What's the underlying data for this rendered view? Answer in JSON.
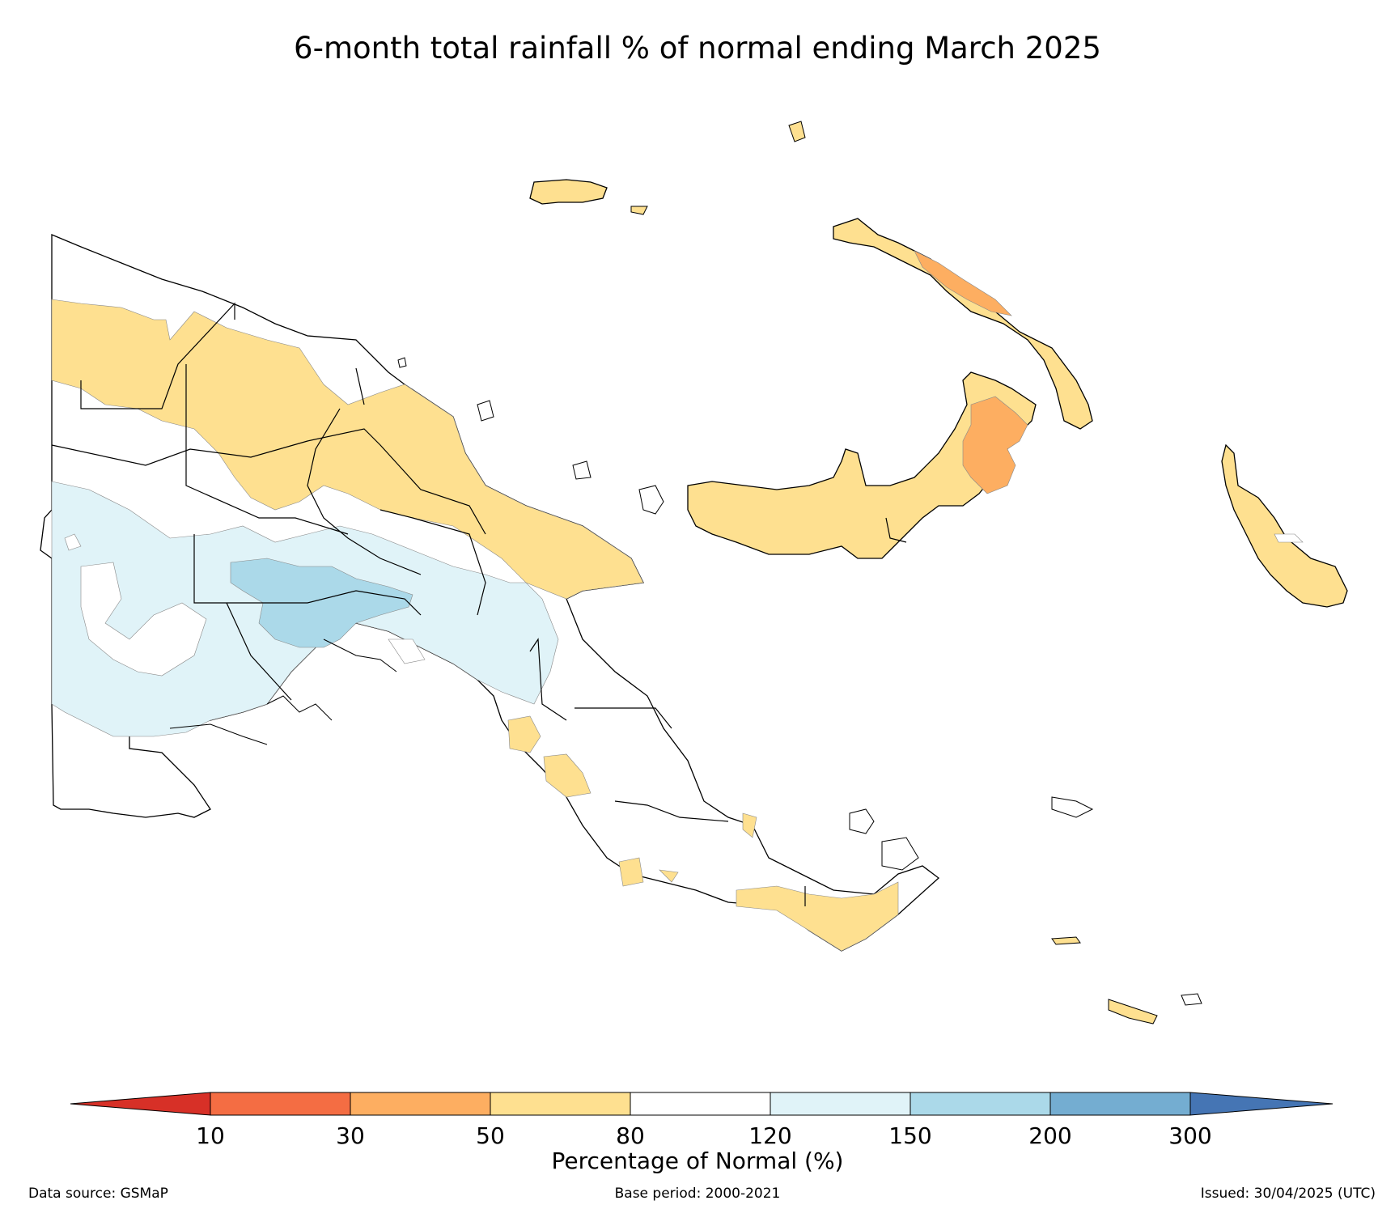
{
  "title": "6-month total rainfall % of normal ending March 2025",
  "colorbar": {
    "label": "Percentage of Normal (%)",
    "ticks": [
      "10",
      "30",
      "50",
      "80",
      "120",
      "150",
      "200",
      "300"
    ],
    "colors": {
      "below_10": "#d73027",
      "10_30": "#f46d43",
      "30_50": "#fdae61",
      "50_80": "#fee090",
      "80_120": "#ffffff",
      "120_150": "#e0f3f8",
      "150_200": "#abd9e9",
      "200_300": "#74add1",
      "above_300": "#4575b4"
    }
  },
  "footer": {
    "source": "Data source: GSMaP",
    "base_period": "Base period: 2000-2021",
    "issued": "Issued: 30/04/2025 (UTC)"
  }
}
